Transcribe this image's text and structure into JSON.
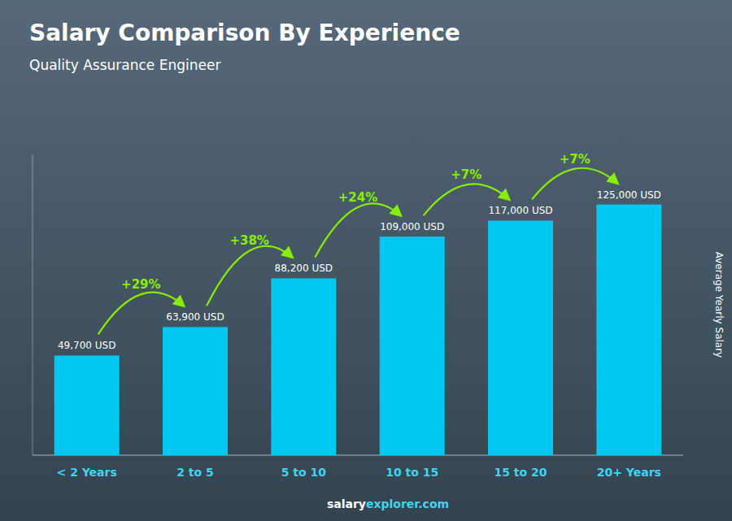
{
  "chart_data": {
    "type": "bar",
    "title": "Salary Comparison By Experience",
    "subtitle": "Quality Assurance Engineer",
    "categories": [
      "< 2 Years",
      "2 to 5",
      "5 to 10",
      "10 to 15",
      "15 to 20",
      "20+ Years"
    ],
    "values": [
      49700,
      63900,
      88200,
      109000,
      117000,
      125000
    ],
    "value_labels": [
      "49,700 USD",
      "63,900 USD",
      "88,200 USD",
      "109,000 USD",
      "117,000 USD",
      "125,000 USD"
    ],
    "data_labels": true,
    "annotations": [
      "+29%",
      "+38%",
      "+24%",
      "+7%",
      "+7%"
    ],
    "ylabel": "Average Yearly Salary",
    "footer": [
      "salary",
      "explorer.com"
    ],
    "color": "#00c8f0",
    "ylim": [
      0,
      150000
    ],
    "tick_labels": "x",
    "grid": false
  }
}
